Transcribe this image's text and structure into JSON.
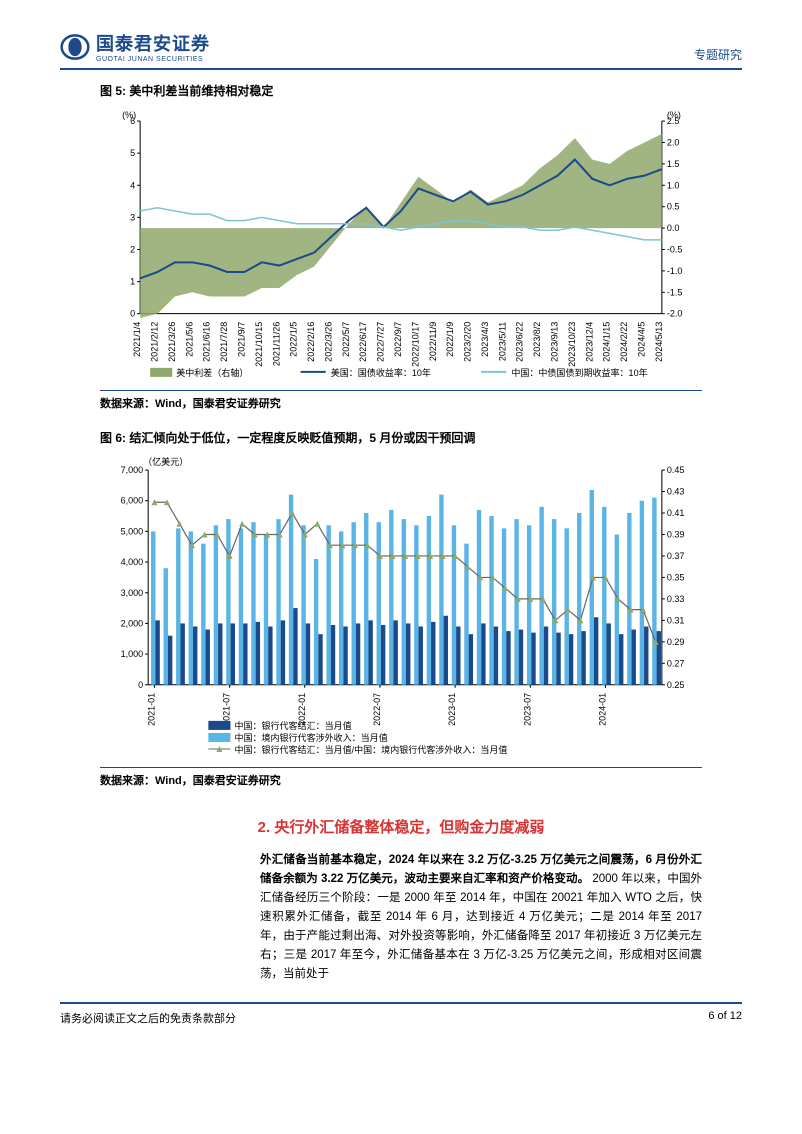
{
  "header": {
    "logo_cn": "国泰君安证券",
    "logo_en": "GUOTAI JUNAN SECURITIES",
    "right": "专题研究"
  },
  "fig5": {
    "title": "图 5:  美中利差当前维持相对稳定",
    "y1_unit": "(%)",
    "y2_unit": "(%)",
    "y1_min": 0,
    "y1_max": 6,
    "y1_step": 1,
    "y2_min": -2.0,
    "y2_max": 2.5,
    "y2_step": 0.5,
    "x_labels": [
      "2021/1/4",
      "2021/2/12",
      "2021/3/26",
      "2021/5/6",
      "2021/6/16",
      "2021/7/28",
      "2021/9/7",
      "2021/10/15",
      "2021/11/26",
      "2022/1/5",
      "2022/2/16",
      "2022/3/26",
      "2022/5/7",
      "2022/6/17",
      "2022/7/27",
      "2022/9/7",
      "2022/10/17",
      "2022/11/9",
      "2022/1/9",
      "2023/2/20",
      "2023/4/3",
      "2023/5/11",
      "2023/6/22",
      "2023/8/2",
      "2023/9/13",
      "2023/10/23",
      "2023/12/4",
      "2024/1/15",
      "2024/2/22",
      "2024/4/5",
      "2024/5/13"
    ],
    "legend": {
      "spread": "美中利差（右轴）",
      "us": "美国：国债收益率：10年",
      "cn": "中国：中债国债到期收益率：10年"
    },
    "colors": {
      "spread_fill": "#8fa86b",
      "us_line": "#1a4a8a",
      "cn_line": "#7fc4d4"
    },
    "us_series": [
      1.1,
      1.3,
      1.6,
      1.6,
      1.5,
      1.3,
      1.3,
      1.6,
      1.5,
      1.7,
      1.9,
      2.4,
      2.9,
      3.3,
      2.7,
      3.2,
      3.9,
      3.7,
      3.5,
      3.8,
      3.4,
      3.5,
      3.7,
      4.0,
      4.3,
      4.8,
      4.2,
      4.0,
      4.2,
      4.3,
      4.5
    ],
    "cn_series": [
      3.2,
      3.3,
      3.2,
      3.1,
      3.1,
      2.9,
      2.9,
      3.0,
      2.9,
      2.8,
      2.8,
      2.8,
      2.8,
      2.8,
      2.7,
      2.6,
      2.7,
      2.8,
      2.9,
      2.9,
      2.8,
      2.7,
      2.7,
      2.6,
      2.6,
      2.7,
      2.6,
      2.5,
      2.4,
      2.3,
      2.3
    ],
    "spread_series": [
      -2.1,
      -2.0,
      -1.6,
      -1.5,
      -1.6,
      -1.6,
      -1.6,
      -1.4,
      -1.4,
      -1.1,
      -0.9,
      -0.4,
      0.1,
      0.5,
      0.0,
      0.6,
      1.2,
      0.9,
      0.6,
      0.9,
      0.6,
      0.8,
      1.0,
      1.4,
      1.7,
      2.1,
      1.6,
      1.5,
      1.8,
      2.0,
      2.2
    ],
    "source": "数据来源：Wind，国泰君安证券研究"
  },
  "fig6": {
    "title": "图 6:  结汇倾向处于低位，一定程度反映贬值预期，5 月份或因干预回调",
    "y1_unit": "（亿美元）",
    "y1_min": 0,
    "y1_max": 7000,
    "y1_step": 1000,
    "y2_min": 0.25,
    "y2_max": 0.45,
    "y2_step": 0.02,
    "x_labels": [
      "2021-01",
      "2021-07",
      "2022-01",
      "2022-07",
      "2023-01",
      "2023-07",
      "2024-01"
    ],
    "legend": {
      "settle": "中国：银行代客结汇：当月值",
      "income": "中国：境内银行代客涉外收入：当月值",
      "ratio": "中国：银行代客结汇：当月值/中国：境内银行代客涉外收入：当月值"
    },
    "colors": {
      "settle": "#1a4a8a",
      "income": "#5ab4e6",
      "ratio_line": "#8fa86b",
      "ratio_marker": "#8fa86b"
    },
    "settle_series": [
      2100,
      1600,
      2000,
      1900,
      1800,
      2000,
      2000,
      2000,
      2050,
      1900,
      2100,
      2500,
      2000,
      1650,
      1950,
      1900,
      2000,
      2100,
      1950,
      2100,
      2000,
      1900,
      2050,
      2250,
      1900,
      1650,
      2000,
      1900,
      1750,
      1800,
      1700,
      1900,
      1700,
      1650,
      1750,
      2200,
      2000,
      1650,
      1800,
      1900,
      1750
    ],
    "income_series": [
      5000,
      3800,
      5100,
      5000,
      4600,
      5200,
      5400,
      5100,
      5300,
      4900,
      5400,
      6200,
      5200,
      4100,
      5200,
      5000,
      5300,
      5600,
      5300,
      5700,
      5400,
      5200,
      5500,
      6200,
      5200,
      4600,
      5700,
      5500,
      5100,
      5400,
      5200,
      5800,
      5400,
      5100,
      5600,
      6350,
      5800,
      4900,
      5600,
      6000,
      6100
    ],
    "ratio_series": [
      0.42,
      0.42,
      0.4,
      0.38,
      0.39,
      0.39,
      0.37,
      0.4,
      0.39,
      0.39,
      0.39,
      0.41,
      0.39,
      0.4,
      0.38,
      0.38,
      0.38,
      0.38,
      0.37,
      0.37,
      0.37,
      0.37,
      0.37,
      0.37,
      0.37,
      0.36,
      0.35,
      0.35,
      0.34,
      0.33,
      0.33,
      0.33,
      0.31,
      0.32,
      0.31,
      0.35,
      0.35,
      0.33,
      0.32,
      0.32,
      0.29
    ],
    "source": "数据来源：Wind，国泰君安证券研究"
  },
  "section2": {
    "title": "2. 央行外汇储备整体稳定，但购金力度减弱",
    "para_bold": "外汇储备当前基本稳定，2024 年以来在 3.2 万亿-3.25 万亿美元之间震荡，6 月份外汇储备余额为 3.22 万亿美元，波动主要来自汇率和资产价格变动。",
    "para_rest": "2000 年以来，中国外汇储备经历三个阶段：一是 2000 年至 2014 年，中国在 20021 年加入 WTO 之后，快速积累外汇储备，截至 2014 年 6 月，达到接近 4 万亿美元；二是 2014 年至 2017 年，由于产能过剩出海、对外投资等影响，外汇储备降至 2017 年初接近 3 万亿美元左右；三是 2017 年至今，外汇储备基本在 3 万亿-3.25 万亿美元之间，形成相对区间震荡，当前处于"
  },
  "footer": {
    "left": "请务必阅读正文之后的免责条款部分",
    "right": "6 of 12"
  }
}
